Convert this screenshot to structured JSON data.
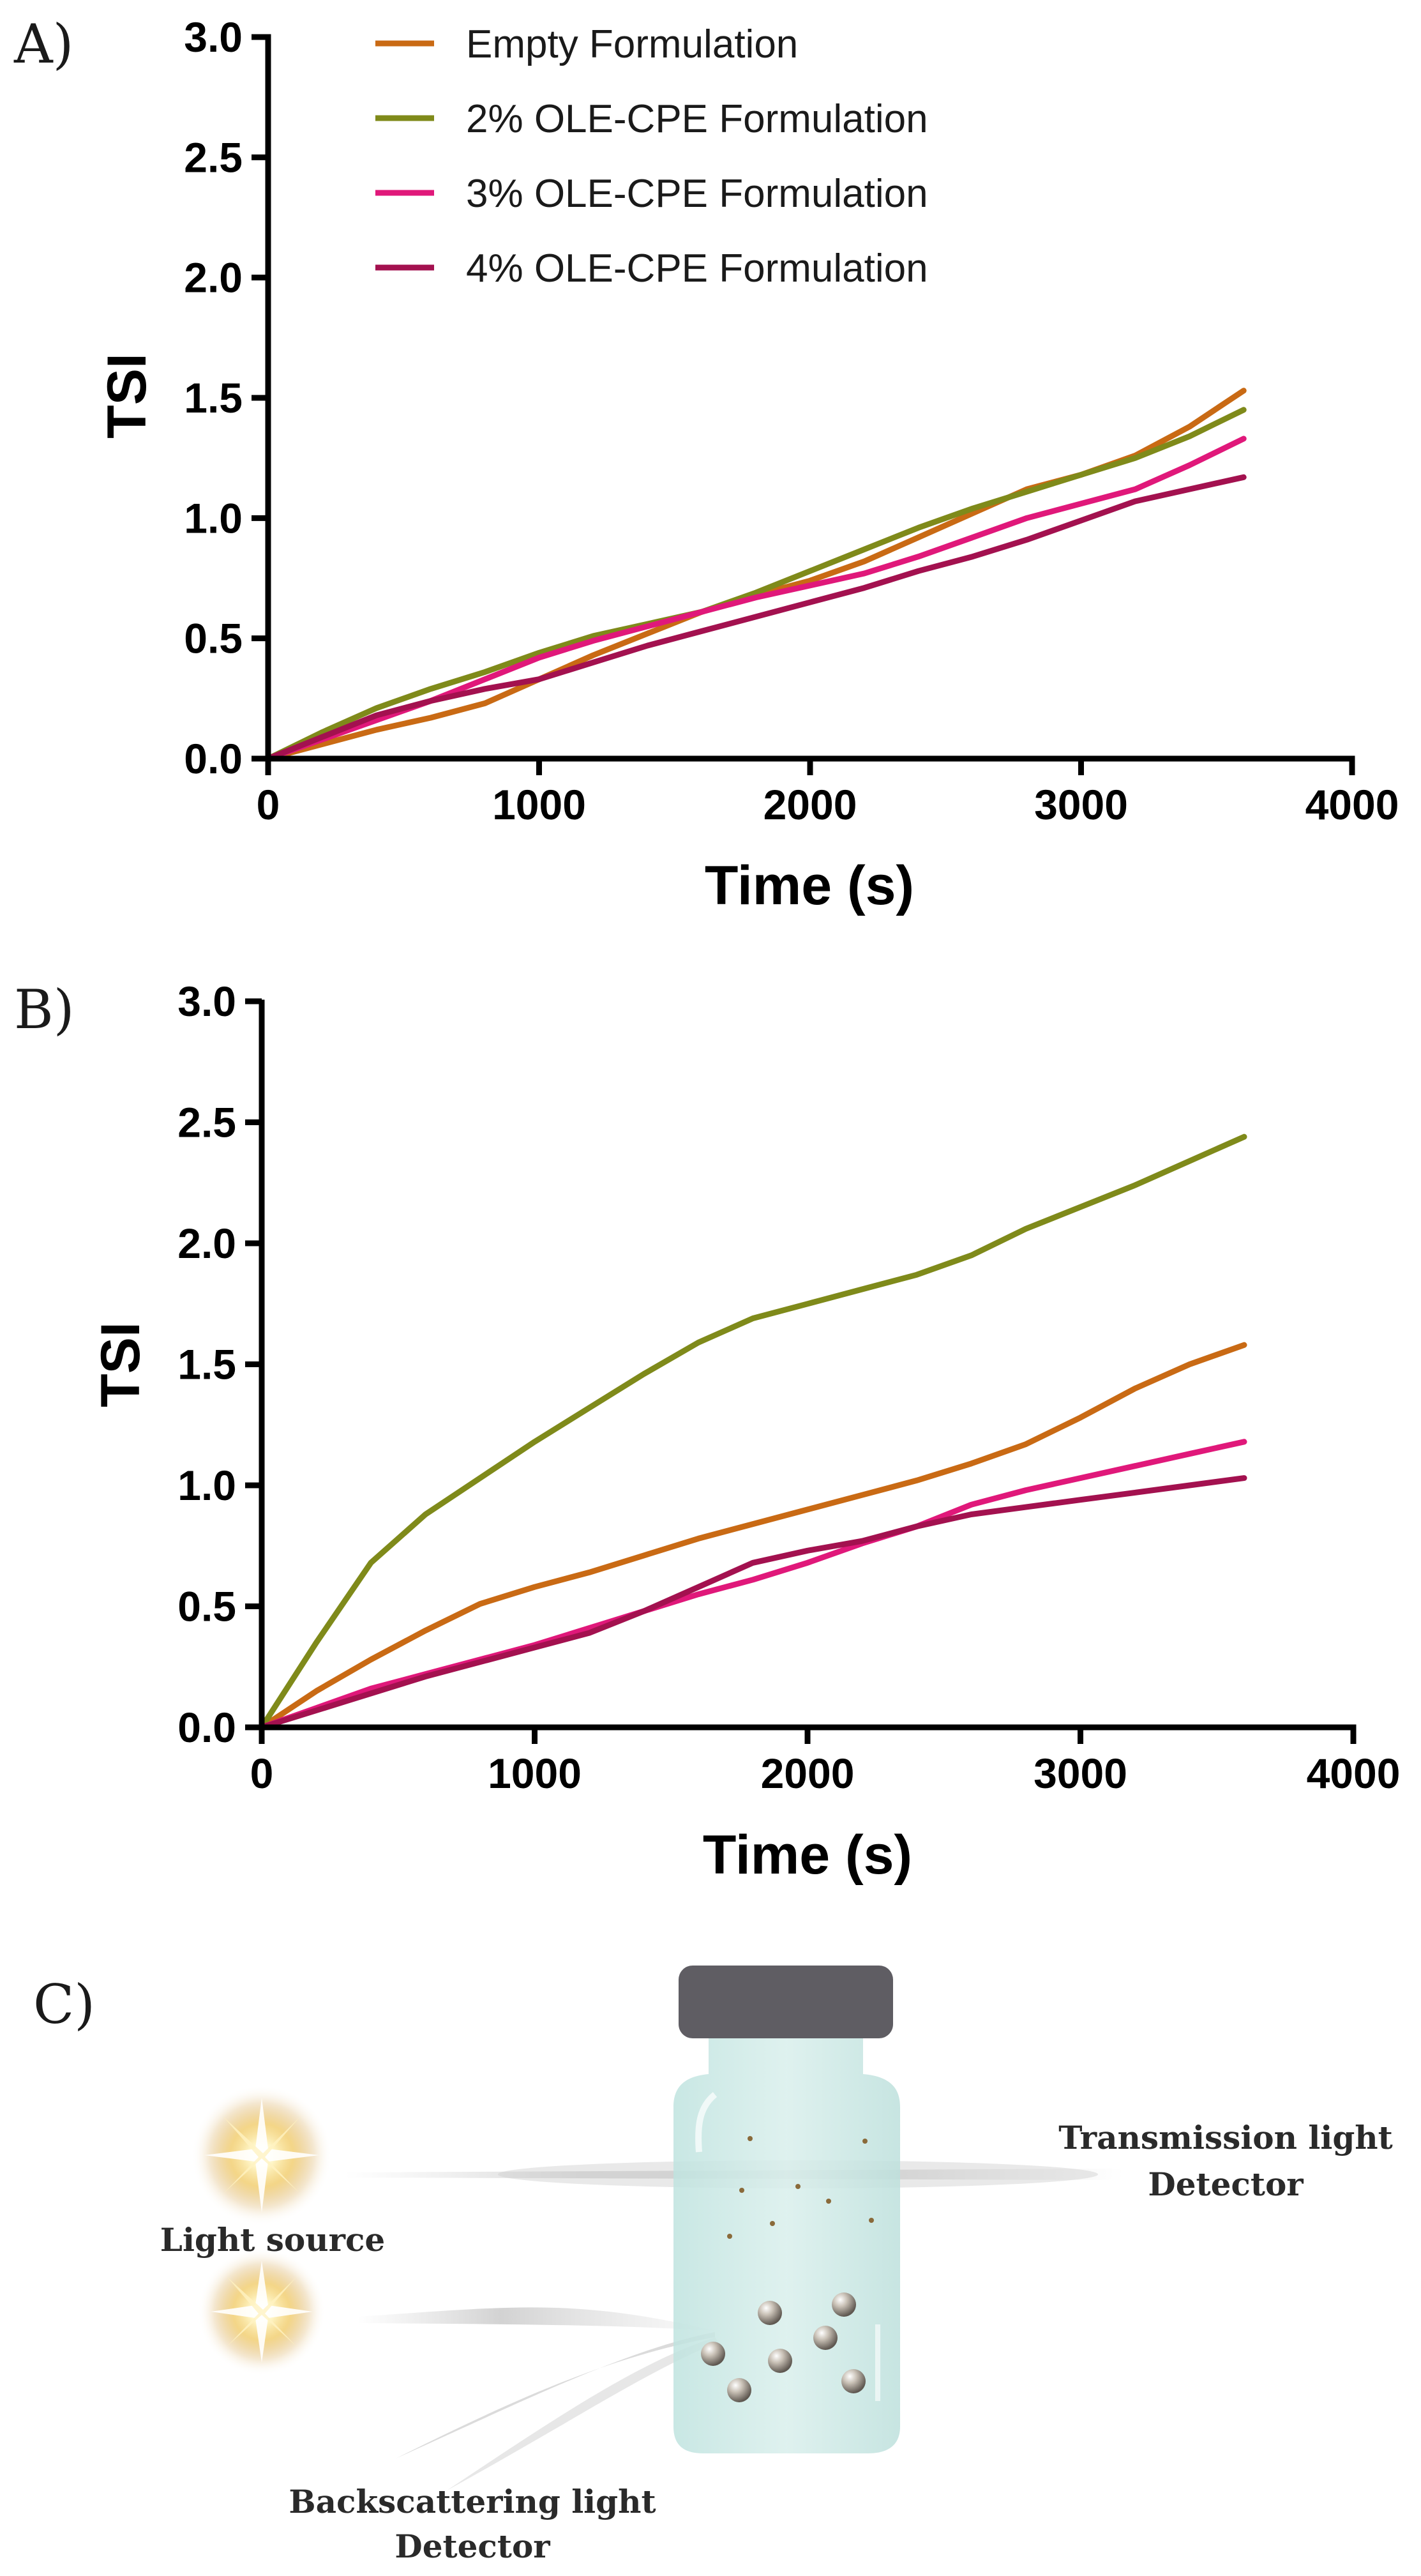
{
  "figure": {
    "panels": [
      "A)",
      "B)",
      "C)"
    ]
  },
  "chart_data": [
    {
      "type": "line",
      "panel": "A)",
      "title": "",
      "xlabel": "Time (s)",
      "ylabel": "TSI",
      "xlim": [
        0,
        4000
      ],
      "ylim": [
        0,
        3.0
      ],
      "xticks": [
        0,
        1000,
        2000,
        3000,
        4000
      ],
      "yticks": [
        0.0,
        0.5,
        1.0,
        1.5,
        2.0,
        2.5,
        3.0
      ],
      "xtick_labels": [
        "0",
        "1000",
        "2000",
        "3000",
        "4000"
      ],
      "ytick_labels": [
        "0.0",
        "0.5",
        "1.0",
        "1.5",
        "2.0",
        "2.5",
        "3.0"
      ],
      "legend_position": "top",
      "x": [
        0,
        200,
        400,
        600,
        800,
        1000,
        1200,
        1400,
        1600,
        1800,
        2000,
        2200,
        2400,
        2600,
        2800,
        3000,
        3200,
        3400,
        3600
      ],
      "series": [
        {
          "name": "Empty Formulation",
          "color": "#C96A14",
          "values": [
            0,
            0.06,
            0.12,
            0.17,
            0.23,
            0.33,
            0.43,
            0.52,
            0.61,
            0.68,
            0.74,
            0.82,
            0.92,
            1.02,
            1.12,
            1.18,
            1.26,
            1.38,
            1.53
          ]
        },
        {
          "name": "2% OLE-CPE Formulation",
          "color": "#7F8A1A",
          "values": [
            0,
            0.11,
            0.21,
            0.29,
            0.36,
            0.44,
            0.51,
            0.56,
            0.61,
            0.69,
            0.78,
            0.87,
            0.96,
            1.04,
            1.11,
            1.18,
            1.25,
            1.34,
            1.45
          ]
        },
        {
          "name": "3% OLE-CPE Formulation",
          "color": "#E0187A",
          "values": [
            0,
            0.08,
            0.16,
            0.24,
            0.33,
            0.42,
            0.49,
            0.55,
            0.61,
            0.67,
            0.72,
            0.77,
            0.84,
            0.92,
            1.0,
            1.06,
            1.12,
            1.22,
            1.33
          ]
        },
        {
          "name": "4% OLE-CPE Formulation",
          "color": "#A3114F",
          "values": [
            0,
            0.09,
            0.18,
            0.24,
            0.29,
            0.33,
            0.4,
            0.47,
            0.53,
            0.59,
            0.65,
            0.71,
            0.78,
            0.84,
            0.91,
            0.99,
            1.07,
            1.12,
            1.17
          ]
        }
      ]
    },
    {
      "type": "line",
      "panel": "B)",
      "title": "",
      "xlabel": "Time (s)",
      "ylabel": "TSI",
      "xlim": [
        0,
        4000
      ],
      "ylim": [
        0,
        3.0
      ],
      "xticks": [
        0,
        1000,
        2000,
        3000,
        4000
      ],
      "yticks": [
        0.0,
        0.5,
        1.0,
        1.5,
        2.0,
        2.5,
        3.0
      ],
      "xtick_labels": [
        "0",
        "1000",
        "2000",
        "3000",
        "4000"
      ],
      "ytick_labels": [
        "0.0",
        "0.5",
        "1.0",
        "1.5",
        "2.0",
        "2.5",
        "3.0"
      ],
      "x": [
        0,
        200,
        400,
        600,
        800,
        1000,
        1200,
        1400,
        1600,
        1800,
        2000,
        2200,
        2400,
        2600,
        2800,
        3000,
        3200,
        3400,
        3600
      ],
      "series": [
        {
          "name": "Empty Formulation",
          "color": "#C96A14",
          "values": [
            0,
            0.15,
            0.28,
            0.4,
            0.51,
            0.58,
            0.64,
            0.71,
            0.78,
            0.84,
            0.9,
            0.96,
            1.02,
            1.09,
            1.17,
            1.28,
            1.4,
            1.5,
            1.58
          ]
        },
        {
          "name": "2% OLE-CPE Formulation",
          "color": "#7F8A1A",
          "values": [
            0,
            0.35,
            0.68,
            0.88,
            1.03,
            1.18,
            1.32,
            1.46,
            1.59,
            1.69,
            1.75,
            1.81,
            1.87,
            1.95,
            2.06,
            2.15,
            2.24,
            2.34,
            2.44
          ]
        },
        {
          "name": "3% OLE-CPE Formulation",
          "color": "#E0187A",
          "values": [
            0,
            0.08,
            0.16,
            0.22,
            0.28,
            0.34,
            0.41,
            0.48,
            0.55,
            0.61,
            0.68,
            0.76,
            0.83,
            0.92,
            0.98,
            1.03,
            1.08,
            1.13,
            1.18
          ]
        },
        {
          "name": "4% OLE-CPE Formulation",
          "color": "#A3114F",
          "values": [
            0,
            0.07,
            0.14,
            0.21,
            0.27,
            0.33,
            0.39,
            0.48,
            0.58,
            0.68,
            0.73,
            0.77,
            0.83,
            0.88,
            0.91,
            0.94,
            0.97,
            1.0,
            1.03
          ]
        }
      ]
    }
  ],
  "diagram": {
    "light_source_label": "Light source",
    "transmission_label": [
      "Transmission light",
      "Detector"
    ],
    "backscatter_label": [
      "Backscattering light",
      "Detector"
    ]
  }
}
